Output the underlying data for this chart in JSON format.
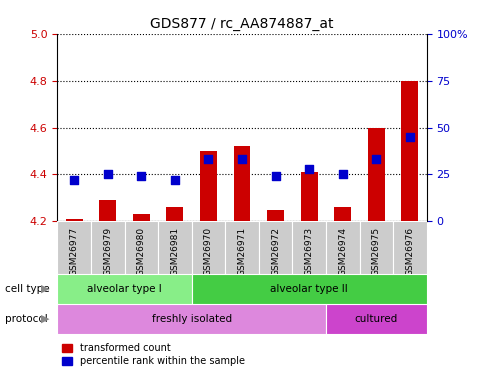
{
  "title": "GDS877 / rc_AA874887_at",
  "samples": [
    "GSM26977",
    "GSM26979",
    "GSM26980",
    "GSM26981",
    "GSM26970",
    "GSM26971",
    "GSM26972",
    "GSM26973",
    "GSM26974",
    "GSM26975",
    "GSM26976"
  ],
  "transformed_count": [
    4.21,
    4.29,
    4.23,
    4.26,
    4.5,
    4.52,
    4.25,
    4.41,
    4.26,
    4.6,
    4.8
  ],
  "percentile_rank": [
    22,
    25,
    24,
    22,
    33,
    33,
    24,
    28,
    25,
    33,
    45
  ],
  "ylim_left": [
    4.2,
    5.0
  ],
  "ylim_right": [
    0,
    100
  ],
  "yticks_left": [
    4.2,
    4.4,
    4.6,
    4.8,
    5.0
  ],
  "yticks_right": [
    0,
    25,
    50,
    75,
    100
  ],
  "bar_color": "#CC0000",
  "dot_color": "#0000CC",
  "background_color": "#FFFFFF",
  "tick_label_color_left": "#CC0000",
  "tick_label_color_right": "#0000CC",
  "bar_width": 0.5,
  "dot_size": 30,
  "base_value": 4.2,
  "cell_type_bounds": [
    [
      0,
      4,
      "alveolar type I",
      "#88EE88"
    ],
    [
      4,
      11,
      "alveolar type II",
      "#44CC44"
    ]
  ],
  "protocol_bounds": [
    [
      0,
      8,
      "freshly isolated",
      "#DD88DD"
    ],
    [
      8,
      11,
      "cultured",
      "#CC44CC"
    ]
  ]
}
